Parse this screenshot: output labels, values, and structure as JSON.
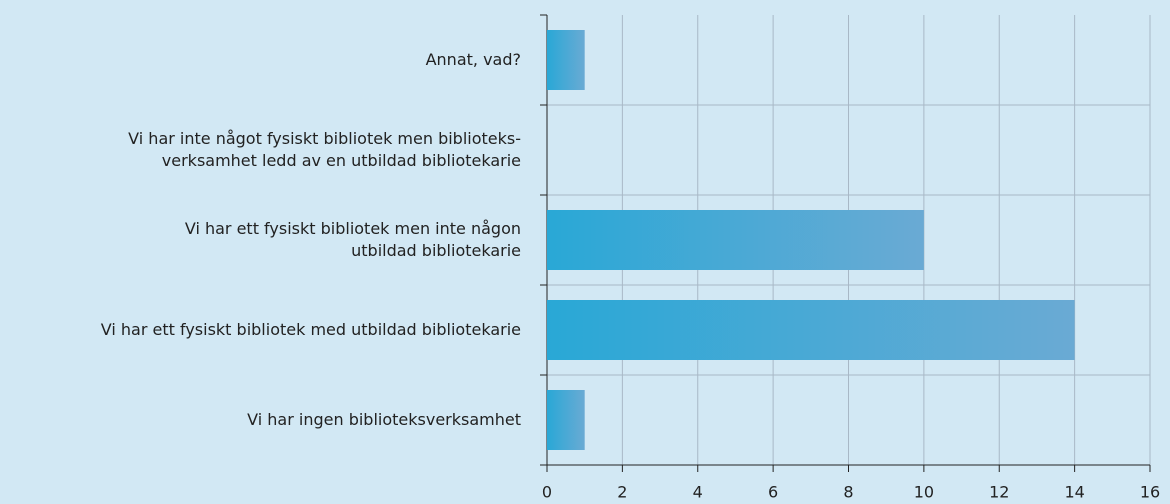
{
  "chart_data": {
    "type": "bar",
    "orientation": "horizontal",
    "categories": [
      "Annat, vad?",
      "Vi har inte något fysiskt bibliotek men biblioteks-\nverksamhet ledd av en utbildad bibliotekarie",
      "Vi har ett fysiskt bibliotek men inte någon\nutbildad bibliotekarie",
      "Vi har ett fysiskt bibliotek med utbildad bibliotekarie",
      "Vi har ingen biblioteksverksamhet"
    ],
    "values": [
      1,
      0,
      10,
      14,
      1
    ],
    "color": "#29a8d6",
    "xlim": [
      0,
      16
    ],
    "xticks": [
      0,
      2,
      4,
      6,
      8,
      10,
      12,
      14,
      16
    ],
    "grid": true
  }
}
